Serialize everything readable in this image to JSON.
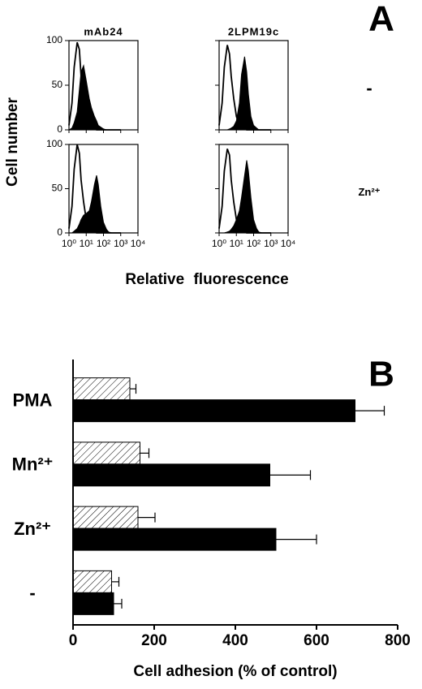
{
  "figure_labels": {
    "panel_a": "A",
    "ylabel": "Cell number",
    "xlabel": "Relative fluorescence"
  },
  "chart_data": [
    {
      "type": "area",
      "title": "mAb24",
      "ytick_labels": true,
      "xtick_labels": false,
      "log_x": true,
      "x": [
        1,
        1.5,
        2,
        3,
        4,
        5,
        7,
        10,
        15,
        20,
        30,
        40,
        50,
        70,
        100,
        150,
        200,
        300,
        500,
        1000
      ],
      "series": [
        {
          "color": "#000",
          "filled": false,
          "values": [
            5,
            30,
            70,
            98,
            90,
            60,
            35,
            15,
            6,
            3,
            1,
            0,
            0,
            0,
            0,
            0,
            0,
            0,
            0,
            0
          ]
        },
        {
          "color": "#000",
          "filled": true,
          "values": [
            0,
            2,
            8,
            20,
            45,
            65,
            72,
            55,
            35,
            25,
            15,
            10,
            5,
            3,
            1,
            0,
            0,
            0,
            0,
            0
          ]
        }
      ],
      "xlim": [
        1,
        10000
      ],
      "ylim": [
        0,
        100
      ],
      "yticks": [
        0,
        50,
        100
      ],
      "xticks": [
        {
          "value": 1,
          "label": "10⁰"
        },
        {
          "value": 10,
          "label": "10¹"
        },
        {
          "value": 100,
          "label": "10²"
        },
        {
          "value": 1000,
          "label": "10³"
        },
        {
          "value": 10000,
          "label": "10⁴"
        }
      ]
    },
    {
      "type": "area",
      "title": "2LPM19c",
      "annotation": "-",
      "ytick_labels": false,
      "xtick_labels": false,
      "log_x": true,
      "x": [
        1,
        1.5,
        2,
        3,
        4,
        5,
        7,
        10,
        15,
        20,
        30,
        40,
        50,
        70,
        100,
        150,
        200,
        300,
        500,
        1000
      ],
      "series": [
        {
          "color": "#000",
          "filled": false,
          "values": [
            5,
            30,
            70,
            95,
            85,
            60,
            35,
            15,
            6,
            3,
            1,
            0,
            0,
            0,
            0,
            0,
            0,
            0,
            0,
            0
          ]
        },
        {
          "color": "#000",
          "filled": true,
          "values": [
            0,
            0,
            0,
            0,
            1,
            2,
            4,
            10,
            30,
            62,
            82,
            65,
            40,
            15,
            5,
            2,
            0,
            0,
            0,
            0
          ]
        }
      ],
      "xlim": [
        1,
        10000
      ],
      "ylim": [
        0,
        100
      ],
      "yticks": [
        0,
        50,
        100
      ],
      "xticks": [
        {
          "value": 1,
          "label": "10⁰"
        },
        {
          "value": 10,
          "label": "10¹"
        },
        {
          "value": 100,
          "label": "10²"
        },
        {
          "value": 1000,
          "label": "10³"
        },
        {
          "value": 10000,
          "label": "10⁴"
        }
      ]
    },
    {
      "type": "area",
      "ytick_labels": true,
      "xtick_labels": true,
      "log_x": true,
      "x": [
        1,
        1.5,
        2,
        3,
        4,
        5,
        7,
        10,
        15,
        20,
        30,
        40,
        50,
        70,
        100,
        150,
        200,
        300,
        500,
        1000
      ],
      "series": [
        {
          "color": "#000",
          "filled": false,
          "values": [
            5,
            30,
            72,
            100,
            90,
            60,
            35,
            15,
            6,
            3,
            1,
            0,
            0,
            0,
            0,
            0,
            0,
            0,
            0,
            0
          ]
        },
        {
          "color": "#000",
          "filled": true,
          "values": [
            0,
            0,
            2,
            5,
            10,
            15,
            20,
            22,
            25,
            35,
            55,
            65,
            55,
            30,
            12,
            4,
            1,
            0,
            0,
            0
          ]
        }
      ],
      "xlim": [
        1,
        10000
      ],
      "ylim": [
        0,
        100
      ],
      "yticks": [
        0,
        50,
        100
      ],
      "xticks": [
        {
          "value": 1,
          "label": "10⁰"
        },
        {
          "value": 10,
          "label": "10¹"
        },
        {
          "value": 100,
          "label": "10²"
        },
        {
          "value": 1000,
          "label": "10³"
        },
        {
          "value": 10000,
          "label": "10⁴"
        }
      ]
    },
    {
      "type": "area",
      "annotation": "Zn²⁺",
      "ytick_labels": false,
      "xtick_labels": true,
      "log_x": true,
      "x": [
        1,
        1.5,
        2,
        3,
        4,
        5,
        7,
        10,
        15,
        20,
        30,
        40,
        50,
        70,
        100,
        150,
        200,
        300,
        500,
        1000
      ],
      "series": [
        {
          "color": "#000",
          "filled": false,
          "values": [
            5,
            30,
            70,
            95,
            88,
            60,
            35,
            15,
            6,
            3,
            1,
            0,
            0,
            0,
            0,
            0,
            0,
            0,
            0,
            0
          ]
        },
        {
          "color": "#000",
          "filled": true,
          "values": [
            0,
            0,
            0,
            1,
            2,
            4,
            8,
            15,
            25,
            40,
            65,
            82,
            70,
            40,
            15,
            5,
            1,
            0,
            0,
            0
          ]
        }
      ],
      "xlim": [
        1,
        10000
      ],
      "ylim": [
        0,
        100
      ],
      "yticks": [
        0,
        50,
        100
      ],
      "xticks": [
        {
          "value": 1,
          "label": "10⁰"
        },
        {
          "value": 10,
          "label": "10¹"
        },
        {
          "value": 100,
          "label": "10²"
        },
        {
          "value": 1000,
          "label": "10³"
        },
        {
          "value": 10000,
          "label": "10⁴"
        }
      ]
    },
    {
      "type": "hbar",
      "title": "B",
      "xlabel": "Cell adhesion (% of control)",
      "categories": [
        "PMA",
        "Mn²⁺",
        "Zn²⁺",
        "-"
      ],
      "series": [
        {
          "color": "#ffffff",
          "pattern": "hatch",
          "values": [
            140,
            165,
            160,
            95
          ],
          "errors": [
            15,
            22,
            42,
            18
          ]
        },
        {
          "color": "#000000",
          "values": [
            695,
            485,
            500,
            100
          ],
          "errors": [
            72,
            100,
            100,
            20
          ]
        }
      ],
      "xlim": [
        0,
        800
      ],
      "xticks": [
        0,
        200,
        400,
        600,
        800
      ]
    }
  ]
}
